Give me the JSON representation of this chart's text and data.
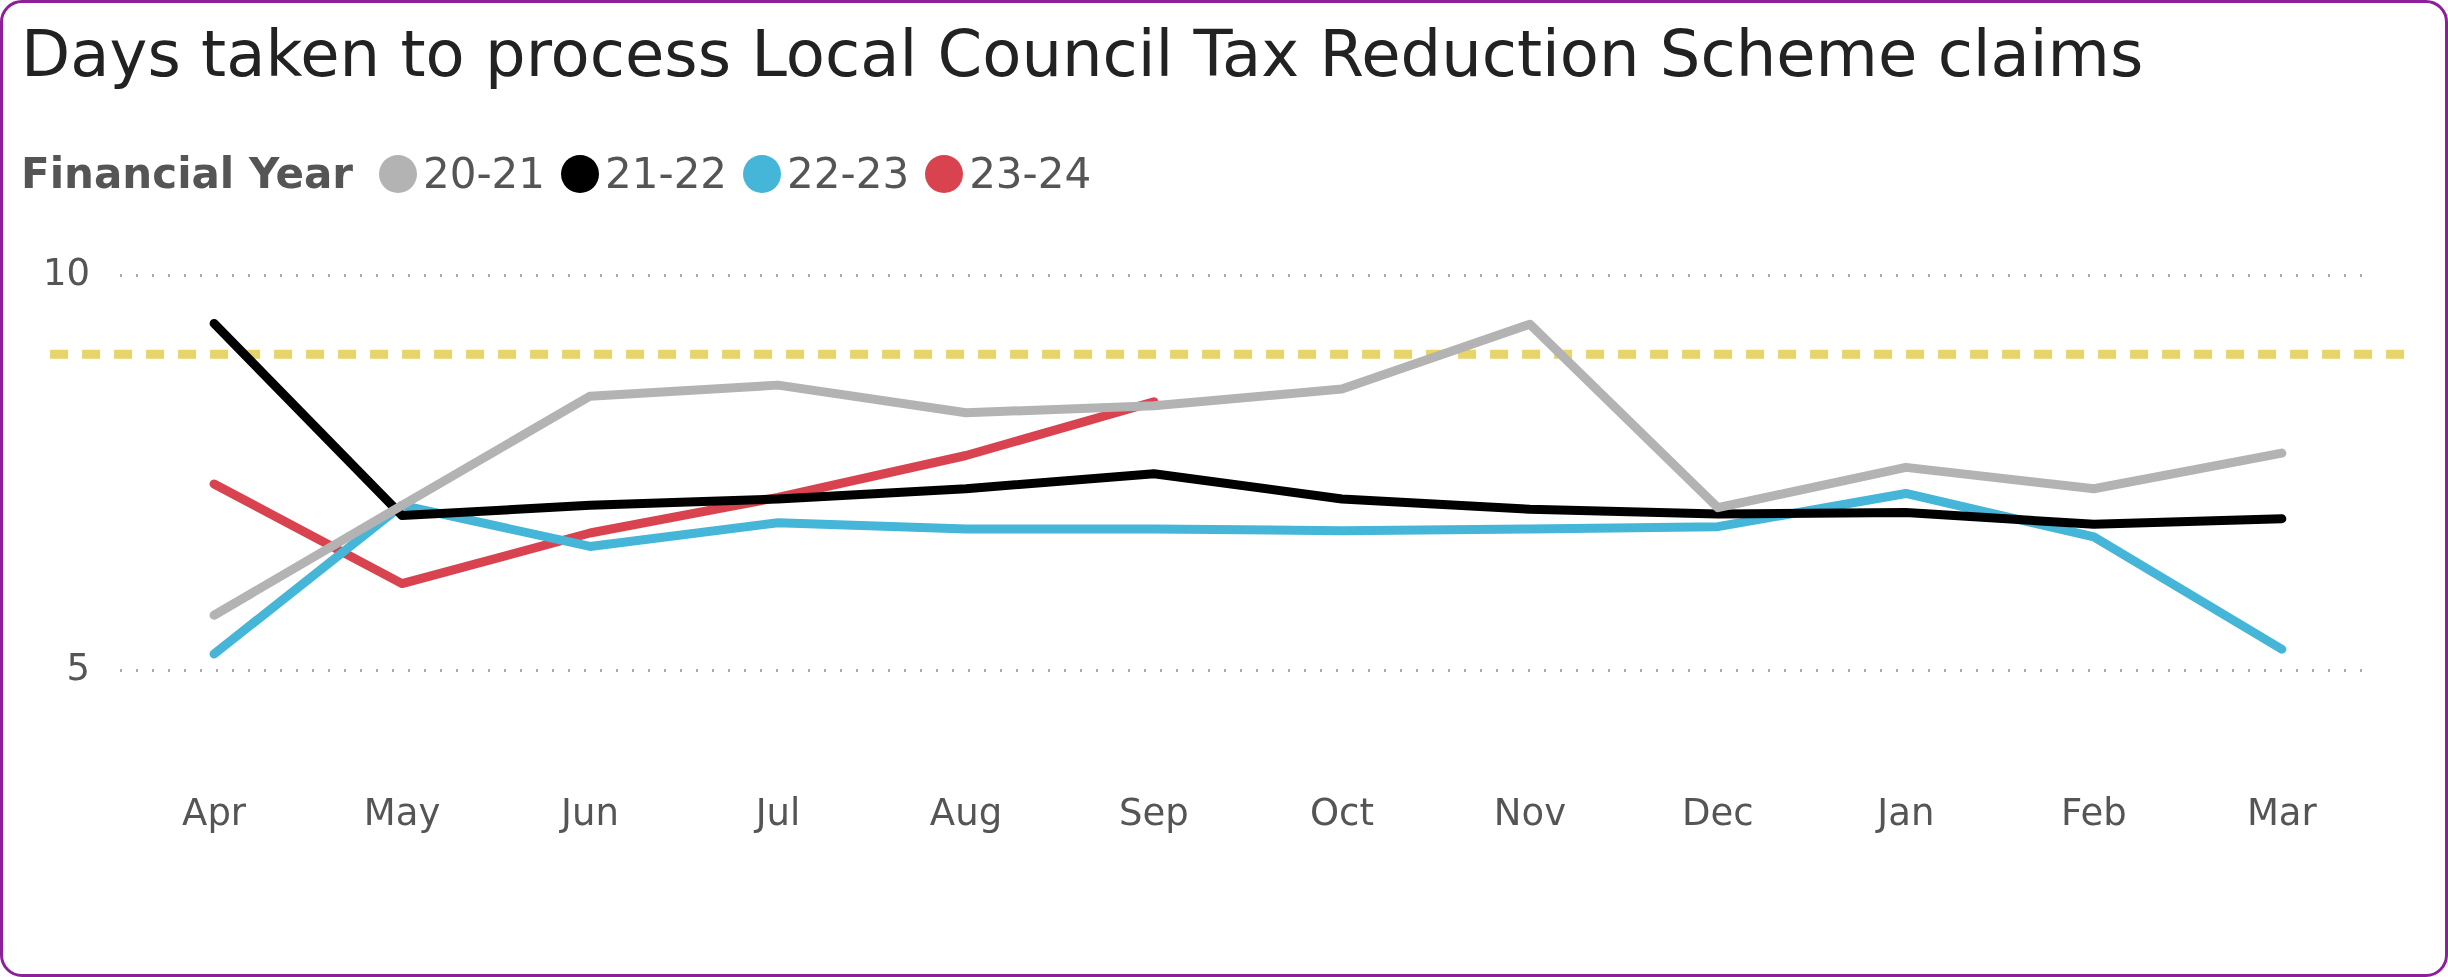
{
  "chart_data": {
    "type": "line",
    "title": "Days taken to process Local Council Tax Reduction Scheme claims",
    "legend_title": "Financial Year",
    "legend": "top left",
    "grid": "y",
    "marker": "none",
    "line_style": "solid",
    "categories": [
      "Apr",
      "May",
      "Jun",
      "Jul",
      "Aug",
      "Sep",
      "Oct",
      "Nov",
      "Dec",
      "Jan",
      "Feb",
      "Mar"
    ],
    "ylim": [
      5,
      10
    ],
    "yticks": [
      5,
      10
    ],
    "series": [
      {
        "name": "20-21",
        "color": "#b3b3b3",
        "values": [
          5.7,
          7.09,
          8.47,
          8.61,
          8.26,
          8.35,
          8.56,
          9.38,
          7.06,
          7.57,
          7.3,
          7.75
        ]
      },
      {
        "name": "21-22",
        "color": "#000000",
        "values": [
          9.39,
          6.96,
          7.09,
          7.17,
          7.3,
          7.49,
          7.17,
          7.04,
          6.98,
          7.0,
          6.85,
          6.92
        ]
      },
      {
        "name": "22-23",
        "color": "#45b5d8",
        "values": [
          5.21,
          7.09,
          6.57,
          6.87,
          6.79,
          6.79,
          6.77,
          6.79,
          6.82,
          7.24,
          6.69,
          5.27
        ]
      },
      {
        "name": "23-24",
        "color": "#d9434f",
        "values": [
          7.36,
          6.1,
          6.74,
          7.19,
          7.72,
          8.4,
          null,
          null,
          null,
          null,
          null,
          null
        ]
      }
    ],
    "ref_lines": [
      {
        "axis": "y",
        "value": 9,
        "label": null,
        "color": "#e8d46a",
        "line_style": "dashed"
      }
    ]
  }
}
